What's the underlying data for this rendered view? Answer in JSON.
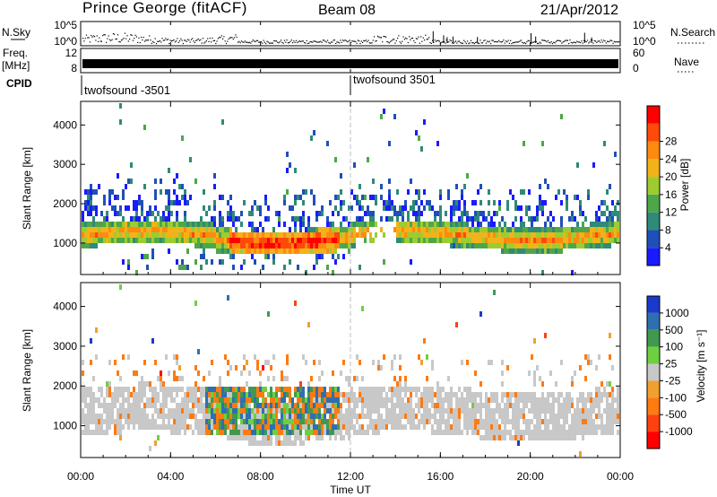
{
  "header": {
    "station": "Prince George (fitACF)",
    "beam": "Beam 08",
    "date": "21/Apr/2012"
  },
  "strips": {
    "nsky_label": "N.Sky",
    "nsky_ticks": [
      "10^5",
      "10^0"
    ],
    "nsearch_label": "N.Search",
    "freq_label_1": "Freq.",
    "freq_label_2": "[MHz]",
    "freq_ticks": [
      "12",
      "8"
    ],
    "nave_label": "Nave",
    "nave_ticks": [
      "60",
      "0"
    ],
    "cpid_label": "CPID",
    "cpid_segments": [
      {
        "label": "twofsound -3501",
        "start_hour": 0
      },
      {
        "label": "twofsound 3501",
        "start_hour": 12
      }
    ]
  },
  "chart_data": [
    {
      "type": "heatmap",
      "name": "power",
      "ylabel": "Slant Range [km]",
      "y_ticks": [
        1000,
        2000,
        3000,
        4000
      ],
      "ylim": [
        200,
        4600
      ],
      "xlim": [
        0,
        24
      ],
      "colorbar": {
        "label": "Power [dB]",
        "ticks": [
          "4",
          "8",
          "12",
          "16",
          "20",
          "24",
          "28"
        ],
        "colors": [
          "#1a1aff",
          "#1f4fb8",
          "#2f8a78",
          "#4ea64a",
          "#9ccc30",
          "#f2b21a",
          "#ff8a10",
          "#ff4a0a",
          "#ff0000"
        ]
      },
      "bands": [
        {
          "hours": [
            0,
            24
          ],
          "range_km": [
            900,
            1700
          ],
          "level": "medium-high"
        },
        {
          "hours": [
            6.5,
            11.5
          ],
          "range_km": [
            900,
            1700
          ],
          "level": "high"
        },
        {
          "hours": [
            0,
            24
          ],
          "range_km": [
            1700,
            2700
          ],
          "level": "low"
        }
      ]
    },
    {
      "type": "heatmap",
      "name": "velocity",
      "ylabel": "Slant Range [km]",
      "y_ticks": [
        1000,
        2000,
        3000,
        4000
      ],
      "ylim": [
        200,
        4600
      ],
      "xlim": [
        0,
        24
      ],
      "xlabel": "Time UT",
      "x_ticks": [
        "00:00",
        "04:00",
        "08:00",
        "12:00",
        "16:00",
        "20:00",
        "00:00"
      ],
      "colorbar": {
        "label": "Velocity [m s⁻¹]",
        "ticks": [
          "1000",
          "500",
          "100",
          "25",
          "-25",
          "-100",
          "-500",
          "-1000"
        ],
        "colors": [
          "#1a3acc",
          "#2f6fb0",
          "#3f9a50",
          "#6ed040",
          "#c8c8c8",
          "#f0a030",
          "#ff7a10",
          "#ff4010",
          "#ff0000"
        ]
      },
      "bands": [
        {
          "hours": [
            0,
            24
          ],
          "range_km": [
            900,
            2000
          ],
          "level": "ground-scatter"
        },
        {
          "hours": [
            5.5,
            11.5
          ],
          "range_km": [
            800,
            2000
          ],
          "level": "positive"
        }
      ]
    }
  ]
}
